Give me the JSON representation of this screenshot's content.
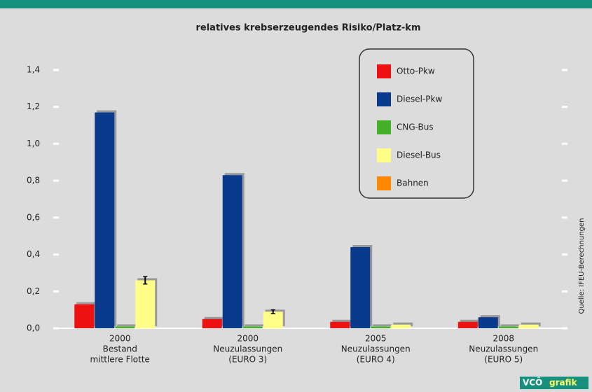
{
  "chart_data": {
    "type": "bar",
    "title": "relatives krebserzeugendes Risiko/Platz-km",
    "categories": [
      [
        "2000",
        "Bestand",
        "mittlere Flotte"
      ],
      [
        "2000",
        "Neuzulassungen",
        "(EURO 3)"
      ],
      [
        "2005",
        "Neuzulassungen",
        "(EURO 4)"
      ],
      [
        "2008",
        "Neuzulassungen",
        "(EURO 5)"
      ]
    ],
    "series": [
      {
        "name": "Otto-Pkw",
        "color": "#ee1111",
        "values": [
          0.13,
          0.05,
          0.035,
          0.035
        ]
      },
      {
        "name": "Diesel-Pkw",
        "color": "#0a3a8c",
        "values": [
          1.17,
          0.83,
          0.44,
          0.06
        ]
      },
      {
        "name": "CNG-Bus",
        "color": "#44b02a",
        "values": [
          0.01,
          0.01,
          0.01,
          0.01
        ]
      },
      {
        "name": "Diesel-Bus",
        "color": "#ffff88",
        "values": [
          0.26,
          0.09,
          0.02,
          0.02
        ],
        "errors": [
          0.02,
          0.01,
          null,
          null
        ]
      },
      {
        "name": "Bahnen",
        "color": "#ff8800",
        "values": [
          null,
          null,
          null,
          null
        ]
      }
    ],
    "ylim": [
      0,
      1.4
    ],
    "yticks": [
      {
        "value": 0,
        "label": "0,0"
      },
      {
        "value": 0.2,
        "label": "0,2"
      },
      {
        "value": 0.4,
        "label": "0,4"
      },
      {
        "value": 0.6,
        "label": "0,6"
      },
      {
        "value": 0.8,
        "label": "0,8"
      },
      {
        "value": 1.0,
        "label": "1,0"
      },
      {
        "value": 1.2,
        "label": "1,2"
      },
      {
        "value": 1.4,
        "label": "1,4"
      }
    ],
    "grid": true,
    "legend": "top-right",
    "source": "Quelle: IFEU-Berechnungen",
    "logo": [
      "VCÖ",
      "grafik"
    ]
  }
}
